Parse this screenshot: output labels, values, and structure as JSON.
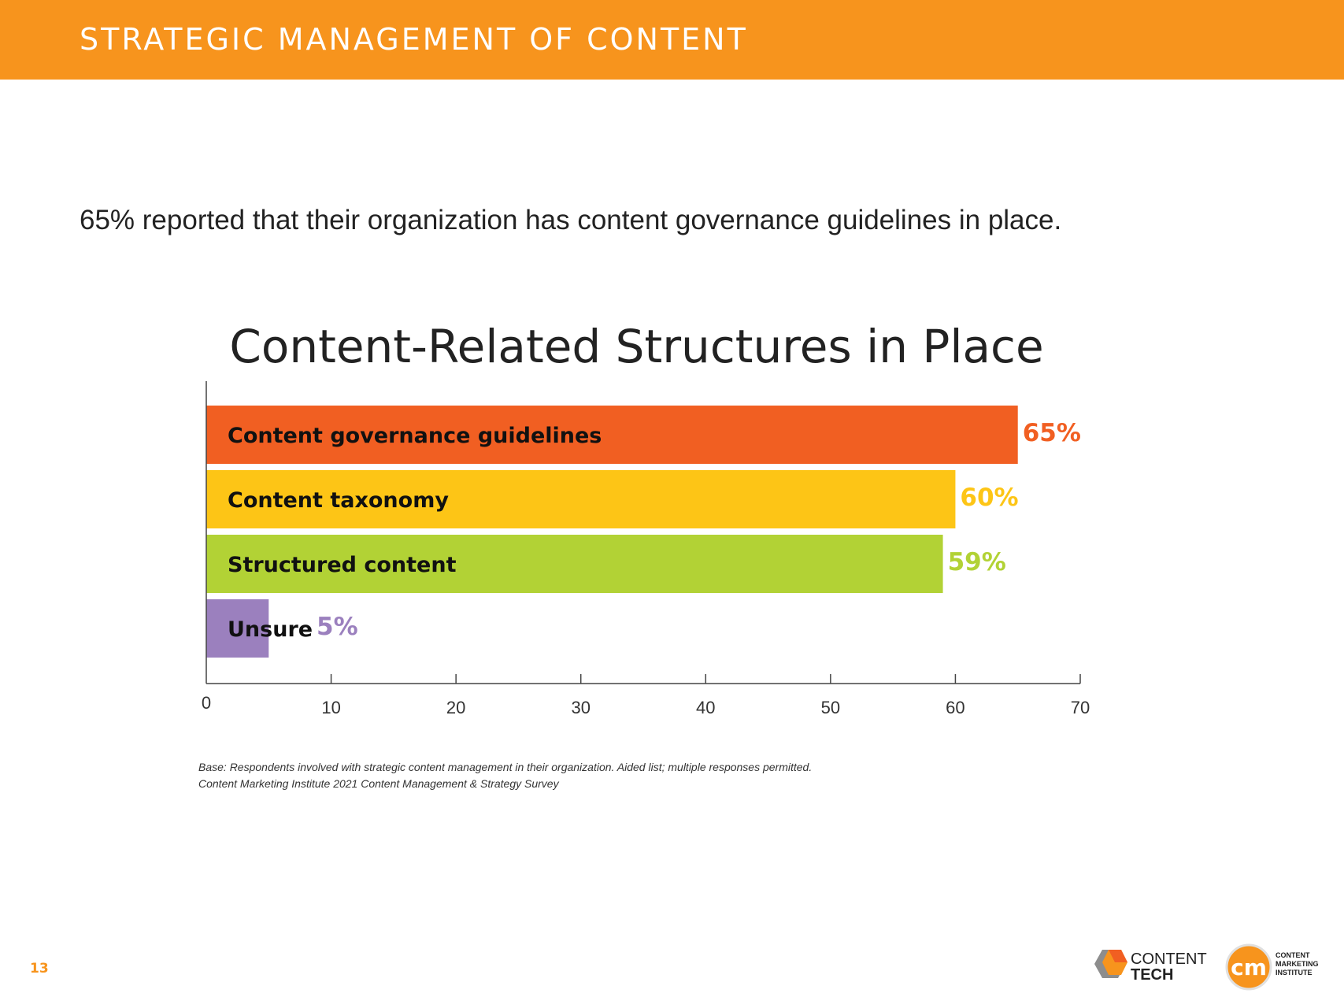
{
  "header": {
    "title": "STRATEGIC MANAGEMENT OF CONTENT",
    "color": "#f7941d"
  },
  "lead_text": "65% reported that their organization has content governance guidelines in place.",
  "chart_data": {
    "type": "bar",
    "orientation": "horizontal",
    "title": "Content-Related Structures in Place",
    "categories": [
      "Content governance guidelines",
      "Content taxonomy",
      "Structured content",
      "Unsure"
    ],
    "values": [
      65,
      60,
      59,
      5
    ],
    "value_labels": [
      "65%",
      "60%",
      "59%",
      "5%"
    ],
    "colors": [
      "#f15f22",
      "#fdc516",
      "#b2d235",
      "#9b80be"
    ],
    "xlim": [
      0,
      70
    ],
    "xticks": [
      0,
      10,
      20,
      30,
      40,
      50,
      60,
      70
    ],
    "xlabel": "",
    "ylabel": "",
    "grid": false,
    "legend": "none"
  },
  "footnotes": [
    "Base: Respondents involved with strategic content management in their organization. Aided list; multiple responses permitted.",
    "Content Marketing Institute 2021 Content Management & Strategy Survey"
  ],
  "page_number": "13",
  "logos": {
    "content_tech": {
      "line1": "CONTENT",
      "line2": "TECH"
    },
    "cmi": {
      "mark": "cm",
      "line1": "CONTENT",
      "line2": "MARKETING",
      "line3": "INSTITUTE"
    }
  }
}
